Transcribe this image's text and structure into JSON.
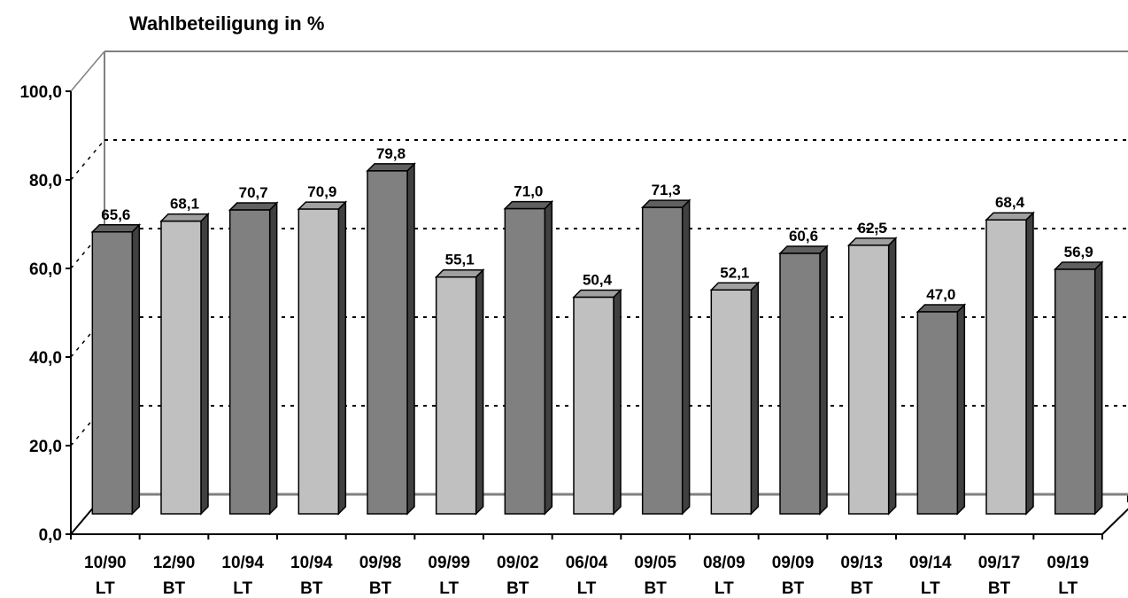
{
  "chart_data": {
    "type": "bar",
    "title": "Wahlbeteiligung in %",
    "xlabel": "",
    "ylabel": "",
    "ylim": [
      0,
      100
    ],
    "yticks": [
      "0,0",
      "20,0",
      "40,0",
      "60,0",
      "80,0",
      "100,0"
    ],
    "categories": [
      [
        "10/90",
        "LT"
      ],
      [
        "12/90",
        "BT"
      ],
      [
        "10/94",
        "LT"
      ],
      [
        "10/94",
        "BT"
      ],
      [
        "09/98",
        "BT"
      ],
      [
        "09/99",
        "LT"
      ],
      [
        "09/02",
        "BT"
      ],
      [
        "06/04",
        "LT"
      ],
      [
        "09/05",
        "BT"
      ],
      [
        "08/09",
        "LT"
      ],
      [
        "09/09",
        "BT"
      ],
      [
        "09/13",
        "BT"
      ],
      [
        "09/14",
        "LT"
      ],
      [
        "09/17",
        "BT"
      ],
      [
        "09/19",
        "LT"
      ]
    ],
    "values": [
      65.6,
      68.1,
      70.7,
      70.9,
      79.8,
      55.1,
      71.0,
      50.4,
      71.3,
      52.1,
      60.6,
      62.5,
      47.0,
      68.4,
      56.9
    ],
    "value_labels": [
      "65,6",
      "68,1",
      "70,7",
      "70,9",
      "79,8",
      "55,1",
      "71,0",
      "50,4",
      "71,3",
      "52,1",
      "60,6",
      "62,5",
      "47,0",
      "68,4",
      "56,9"
    ],
    "bar_colors": [
      "#808080",
      "#c0c0c0",
      "#808080",
      "#c0c0c0",
      "#808080",
      "#c0c0c0",
      "#808080",
      "#c0c0c0",
      "#808080",
      "#c0c0c0",
      "#808080",
      "#c0c0c0",
      "#808080",
      "#c0c0c0",
      "#808080"
    ],
    "grid": true,
    "legend": "none"
  }
}
